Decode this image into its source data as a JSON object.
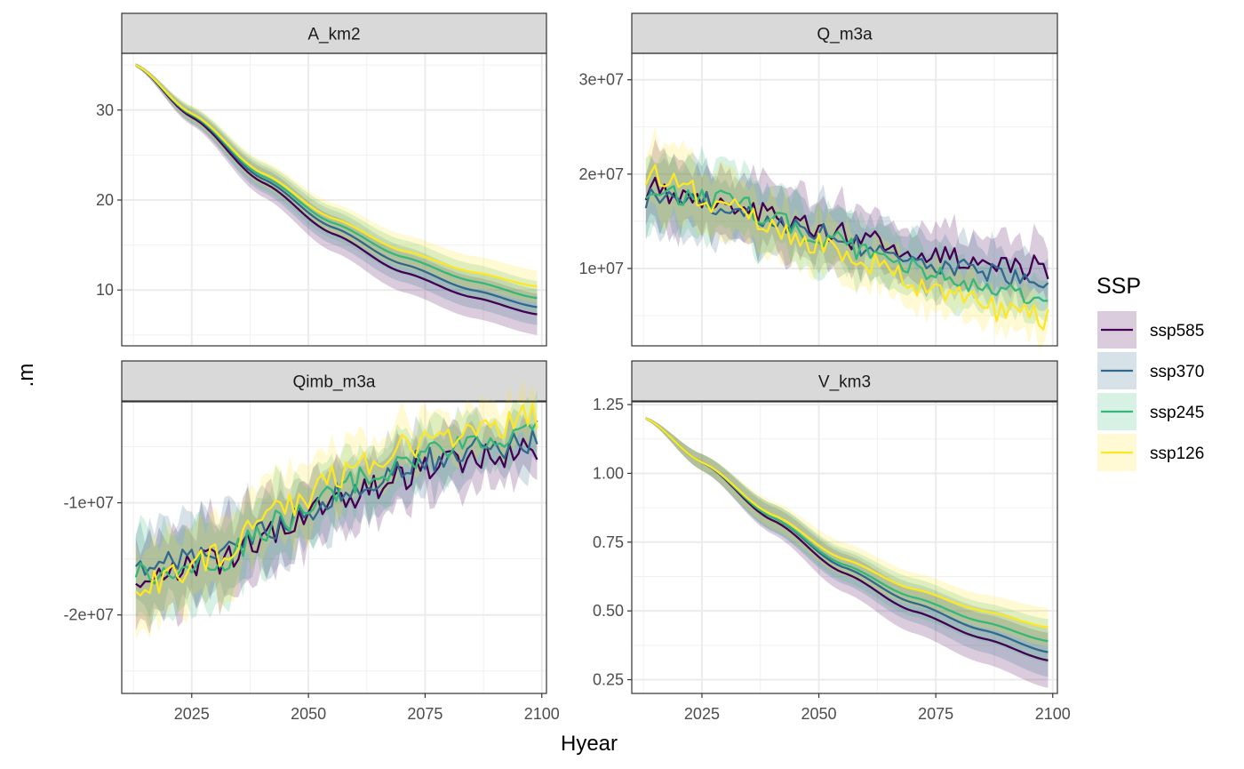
{
  "chart_data": {
    "type": "line",
    "xlabel": "Hyear",
    "ylabel": ".m",
    "legend": {
      "title": "SSP",
      "placement": "right",
      "entries": [
        "ssp585",
        "ssp370",
        "ssp245",
        "ssp126"
      ]
    },
    "colors": {
      "ssp585": "#440154",
      "ssp370": "#31688e",
      "ssp245": "#35b779",
      "ssp126": "#fde725"
    },
    "grid": true,
    "x_range": [
      2010,
      2101
    ],
    "x_ticks": [
      2025,
      2050,
      2075,
      2100
    ],
    "x_tick_labels": [
      "2025",
      "2050",
      "2075",
      "2100"
    ],
    "panels": [
      {
        "title": "A_km2",
        "y_range": [
          3.8,
          36.3
        ],
        "y_ticks": [
          10,
          20,
          30
        ],
        "y_tick_labels": [
          "10",
          "20",
          "30"
        ],
        "series": [
          {
            "name": "ssp585",
            "x": [
              2013,
              2025,
              2040,
              2055,
              2070,
              2085,
              2099
            ],
            "y": [
              35.0,
              29.2,
              22.0,
              16.3,
              12.0,
              9.2,
              7.3
            ],
            "band_halfwidth": [
              0.2,
              0.9,
              1.6,
              2.0,
              2.2,
              2.3,
              2.3
            ],
            "noise": 0
          },
          {
            "name": "ssp370",
            "x": [
              2013,
              2025,
              2040,
              2055,
              2070,
              2085,
              2099
            ],
            "y": [
              35.0,
              29.4,
              22.4,
              17.0,
              12.9,
              10.0,
              8.1
            ],
            "band_halfwidth": [
              0.2,
              0.9,
              1.5,
              1.9,
              2.0,
              2.0,
              2.0
            ],
            "noise": 0
          },
          {
            "name": "ssp245",
            "x": [
              2013,
              2025,
              2040,
              2055,
              2070,
              2085,
              2099
            ],
            "y": [
              35.0,
              29.5,
              22.7,
              17.5,
              13.7,
              11.0,
              9.1
            ],
            "band_halfwidth": [
              0.2,
              0.9,
              1.5,
              1.8,
              1.9,
              1.9,
              1.9
            ],
            "noise": 0
          },
          {
            "name": "ssp126",
            "x": [
              2013,
              2025,
              2040,
              2055,
              2070,
              2085,
              2099
            ],
            "y": [
              35.0,
              29.6,
              23.0,
              18.0,
              14.4,
              12.0,
              10.4
            ],
            "band_halfwidth": [
              0.2,
              0.9,
              1.4,
              1.7,
              1.8,
              1.8,
              1.8
            ],
            "noise": 0
          }
        ]
      },
      {
        "title": "Q_m3a",
        "y_range": [
          1800000,
          32800000
        ],
        "y_ticks": [
          10000000,
          20000000,
          30000000
        ],
        "y_tick_labels": [
          "1e+07",
          "2e+07",
          "3e+07"
        ],
        "series": [
          {
            "name": "ssp585",
            "x": [
              2013,
              2030,
              2045,
              2060,
              2075,
              2090,
              2099
            ],
            "y": [
              18500000,
              17000000,
              15000000,
              13000000,
              11300000,
              10300000,
              10000000
            ],
            "band_halfwidth": [
              3500000,
              3500000,
              3300000,
              3000000,
              2800000,
              2700000,
              2700000
            ],
            "noise": 1300000
          },
          {
            "name": "ssp370",
            "x": [
              2013,
              2030,
              2045,
              2060,
              2075,
              2090,
              2099
            ],
            "y": [
              17500000,
              16800000,
              14700000,
              12400000,
              10500000,
              9200000,
              8800000
            ],
            "band_halfwidth": [
              3500000,
              3500000,
              3200000,
              3000000,
              2700000,
              2600000,
              2600000
            ],
            "noise": 1200000
          },
          {
            "name": "ssp245",
            "x": [
              2013,
              2030,
              2045,
              2060,
              2075,
              2090,
              2099
            ],
            "y": [
              18500000,
              17200000,
              14300000,
              11800000,
              9200000,
              7200000,
              6200000
            ],
            "band_halfwidth": [
              3500000,
              3500000,
              3200000,
              2900000,
              2600000,
              2400000,
              2300000
            ],
            "noise": 1200000
          },
          {
            "name": "ssp126",
            "x": [
              2013,
              2030,
              2045,
              2060,
              2075,
              2090,
              2099
            ],
            "y": [
              20000000,
              16800000,
              13200000,
              10700000,
              7700000,
              5500000,
              4500000
            ],
            "band_halfwidth": [
              3500000,
              3400000,
              3000000,
              2700000,
              2400000,
              2200000,
              2100000
            ],
            "noise": 1300000
          }
        ]
      },
      {
        "title": "Qimb_m3a",
        "y_range": [
          -27000000,
          -1000000
        ],
        "y_ticks": [
          -20000000,
          -10000000
        ],
        "y_tick_labels": [
          "-2e+07",
          "-1e+07"
        ],
        "series": [
          {
            "name": "ssp585",
            "x": [
              2013,
              2030,
              2045,
              2060,
              2075,
              2090,
              2099
            ],
            "y": [
              -17000000,
              -15200000,
              -12200000,
              -9200000,
              -7000000,
              -5800000,
              -5300000
            ],
            "band_halfwidth": [
              3500000,
              3400000,
              3100000,
              2700000,
              2400000,
              2200000,
              2200000
            ],
            "noise": 1300000
          },
          {
            "name": "ssp370",
            "x": [
              2013,
              2030,
              2045,
              2060,
              2075,
              2090,
              2099
            ],
            "y": [
              -15500000,
              -15000000,
              -11800000,
              -8500000,
              -6300000,
              -5000000,
              -4700000
            ],
            "band_halfwidth": [
              3500000,
              3400000,
              3100000,
              2700000,
              2400000,
              2200000,
              2200000
            ],
            "noise": 1200000
          },
          {
            "name": "ssp245",
            "x": [
              2013,
              2030,
              2045,
              2060,
              2075,
              2090,
              2099
            ],
            "y": [
              -16500000,
              -15300000,
              -11500000,
              -8000000,
              -5500000,
              -4000000,
              -3300000
            ],
            "band_halfwidth": [
              3500000,
              3400000,
              3000000,
              2600000,
              2300000,
              2100000,
              2100000
            ],
            "noise": 1200000
          },
          {
            "name": "ssp126",
            "x": [
              2013,
              2030,
              2045,
              2060,
              2075,
              2090,
              2099
            ],
            "y": [
              -17800000,
              -14800000,
              -10500000,
              -6900000,
              -4500000,
              -3000000,
              -2200000
            ],
            "band_halfwidth": [
              3500000,
              3300000,
              2900000,
              2500000,
              2200000,
              2000000,
              2000000
            ],
            "noise": 1300000
          }
        ]
      },
      {
        "title": "V_km3",
        "y_range": [
          0.2,
          1.26
        ],
        "y_ticks": [
          0.25,
          0.5,
          0.75,
          1.0,
          1.25
        ],
        "y_tick_labels": [
          "0.25",
          "0.50",
          "0.75",
          "1.00",
          "1.25"
        ],
        "series": [
          {
            "name": "ssp585",
            "x": [
              2013,
              2025,
              2040,
              2055,
              2070,
              2085,
              2099
            ],
            "y": [
              1.2,
              1.04,
              0.83,
              0.64,
              0.5,
              0.4,
              0.32
            ],
            "band_halfwidth": [
              0.005,
              0.03,
              0.05,
              0.07,
              0.08,
              0.09,
              0.1
            ],
            "noise": 0
          },
          {
            "name": "ssp370",
            "x": [
              2013,
              2025,
              2040,
              2055,
              2070,
              2085,
              2099
            ],
            "y": [
              1.2,
              1.04,
              0.84,
              0.66,
              0.53,
              0.43,
              0.35
            ],
            "band_halfwidth": [
              0.005,
              0.03,
              0.05,
              0.06,
              0.07,
              0.08,
              0.09
            ],
            "noise": 0
          },
          {
            "name": "ssp245",
            "x": [
              2013,
              2025,
              2040,
              2055,
              2070,
              2085,
              2099
            ],
            "y": [
              1.2,
              1.04,
              0.84,
              0.67,
              0.55,
              0.46,
              0.39
            ],
            "band_halfwidth": [
              0.005,
              0.03,
              0.05,
              0.06,
              0.07,
              0.07,
              0.08
            ],
            "noise": 0
          },
          {
            "name": "ssp126",
            "x": [
              2013,
              2025,
              2040,
              2055,
              2070,
              2085,
              2099
            ],
            "y": [
              1.2,
              1.04,
              0.85,
              0.69,
              0.58,
              0.5,
              0.44
            ],
            "band_halfwidth": [
              0.005,
              0.03,
              0.05,
              0.06,
              0.06,
              0.06,
              0.07
            ],
            "noise": 0
          }
        ]
      }
    ]
  }
}
